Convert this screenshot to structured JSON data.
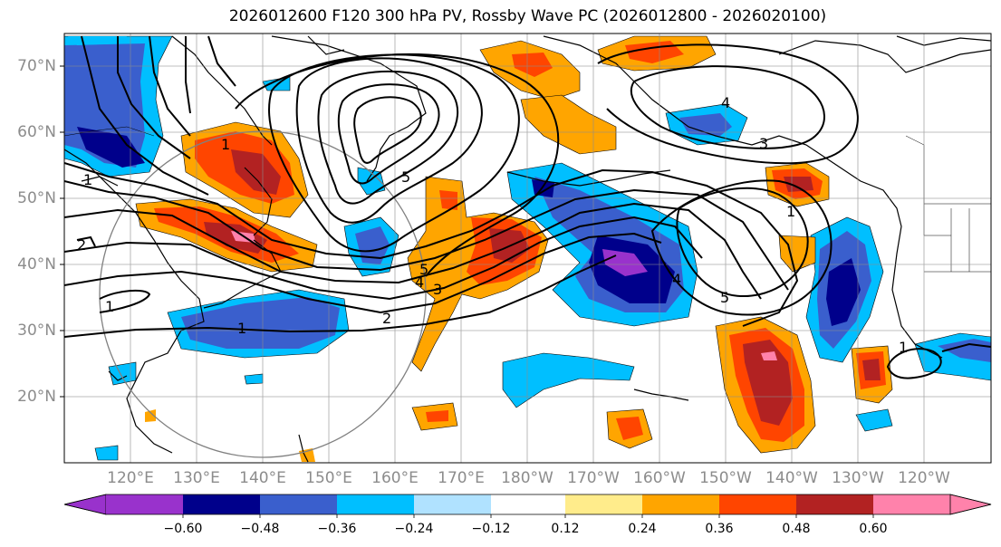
{
  "map": {
    "title": "2026012600 F120 300 hPa PV, Rossby Wave PC (2026012800 - 2026020100)",
    "lat_labels": [
      "70°N",
      "60°N",
      "50°N",
      "40°N",
      "30°N",
      "20°N"
    ],
    "lon_labels": [
      "120°E",
      "130°E",
      "140°E",
      "150°E",
      "160°E",
      "170°E",
      "180°W",
      "170°W",
      "160°W",
      "150°W",
      "140°W",
      "130°W",
      "120°W"
    ],
    "contour_labels": [
      "1",
      "1",
      "1",
      "1",
      "1",
      "1",
      "2",
      "2",
      "3",
      "3",
      "4",
      "4",
      "4",
      "5",
      "5",
      "5"
    ],
    "colorbar": {
      "tick_labels": [
        "−0.60",
        "−0.48",
        "−0.36",
        "−0.24",
        "−0.12",
        "0.12",
        "0.24",
        "0.36",
        "0.48",
        "0.60"
      ],
      "colors": [
        "#9932cc",
        "#00008b",
        "#3a5fcd",
        "#00bfff",
        "#b0e2ff",
        "#ffffff",
        "#ffec8b",
        "#ffa500",
        "#ff4500",
        "#b22222",
        "#ff82ab"
      ]
    },
    "colors": {
      "neg_strong": "#00008b",
      "neg_mid": "#3a5fcd",
      "neg_weak": "#00bfff",
      "pos_weak": "#ffa500",
      "pos_mid": "#ff4500",
      "pos_strong": "#b22222",
      "pos_max": "#ff82ab",
      "neg_max": "#9932cc"
    }
  }
}
